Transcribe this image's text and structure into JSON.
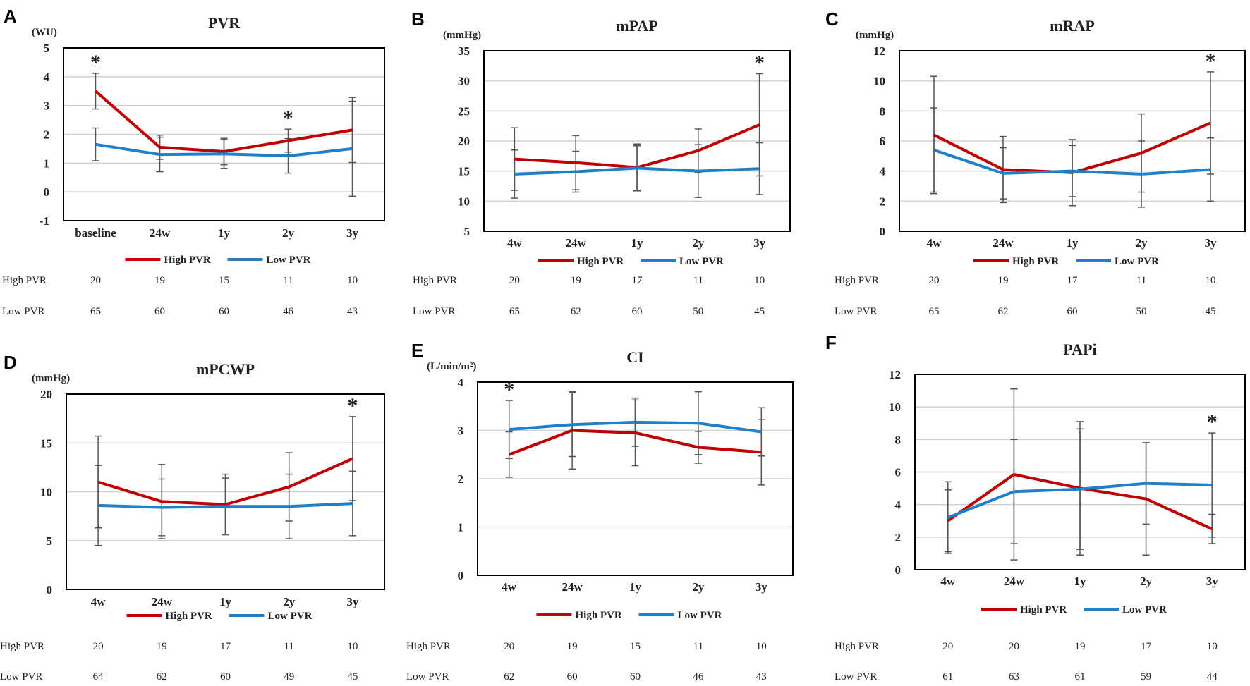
{
  "colors": {
    "high": "#c00000",
    "low": "#1f7fc8",
    "error_bar": "#555555",
    "grid": "#d0d0d0"
  },
  "legend": {
    "high": "High PVR",
    "low": "Low PVR"
  },
  "table_rows": {
    "high": "High PVR",
    "low": "Low PVR"
  },
  "chart_data": [
    {
      "panel": "A",
      "type": "line",
      "title": "PVR",
      "ylabel": "(WU)",
      "ylim": [
        -1,
        5
      ],
      "ytick_step": 1,
      "categories": [
        "baseline",
        "24w",
        "1y",
        "2y",
        "3y"
      ],
      "series": [
        {
          "name": "High PVR",
          "values": [
            3.5,
            1.55,
            1.4,
            1.78,
            2.15
          ],
          "error": [
            0.62,
            0.42,
            0.46,
            0.4,
            1.13
          ]
        },
        {
          "name": "Low PVR",
          "values": [
            1.65,
            1.3,
            1.32,
            1.25,
            1.5
          ],
          "error": [
            0.57,
            0.6,
            0.5,
            0.6,
            1.65
          ]
        }
      ],
      "significant": [
        "baseline",
        "2y"
      ],
      "n_high": [
        20,
        19,
        15,
        11,
        10
      ],
      "n_low": [
        65,
        60,
        60,
        46,
        43
      ]
    },
    {
      "panel": "B",
      "type": "line",
      "title": "mPAP",
      "ylabel": "(mmHg)",
      "ylim": [
        5,
        35
      ],
      "ytick_step": 5,
      "categories": [
        "4w",
        "24w",
        "1y",
        "2y",
        "3y"
      ],
      "series": [
        {
          "name": "High PVR",
          "values": [
            17,
            16.4,
            15.6,
            18.4,
            22.7
          ],
          "error": [
            5.2,
            4.5,
            3.9,
            3.6,
            8.5
          ]
        },
        {
          "name": "Low PVR",
          "values": [
            14.5,
            14.9,
            15.5,
            15.0,
            15.4
          ],
          "error": [
            4.0,
            3.4,
            3.7,
            4.4,
            4.3
          ]
        }
      ],
      "significant": [
        "3y"
      ],
      "n_high": [
        20,
        19,
        17,
        11,
        10
      ],
      "n_low": [
        65,
        62,
        60,
        50,
        45
      ]
    },
    {
      "panel": "C",
      "type": "line",
      "title": "mRAP",
      "ylabel": "(mmHg)",
      "ylim": [
        0,
        12
      ],
      "ytick_step": 2,
      "categories": [
        "4w",
        "24w",
        "1y",
        "2y",
        "3y"
      ],
      "series": [
        {
          "name": "High PVR",
          "values": [
            6.4,
            4.1,
            3.9,
            5.2,
            7.2
          ],
          "error": [
            3.9,
            2.2,
            2.2,
            2.6,
            3.4
          ]
        },
        {
          "name": "Low PVR",
          "values": [
            5.4,
            3.85,
            4.0,
            3.8,
            4.1
          ],
          "error": [
            2.8,
            1.7,
            1.7,
            2.2,
            2.1
          ]
        }
      ],
      "significant": [
        "3y"
      ],
      "n_high": [
        20,
        19,
        17,
        11,
        10
      ],
      "n_low": [
        65,
        62,
        60,
        50,
        45
      ]
    },
    {
      "panel": "D",
      "type": "line",
      "title": "mPCWP",
      "ylabel": "(mmHg)",
      "ylim": [
        0,
        20
      ],
      "ytick_step": 5,
      "categories": [
        "4w",
        "24w",
        "1y",
        "2y",
        "3y"
      ],
      "series": [
        {
          "name": "High PVR",
          "values": [
            11,
            9,
            8.7,
            10.5,
            13.4
          ],
          "error": [
            4.7,
            3.8,
            3.1,
            3.5,
            4.3
          ]
        },
        {
          "name": "Low PVR",
          "values": [
            8.6,
            8.4,
            8.5,
            8.5,
            8.8
          ],
          "error": [
            4.1,
            2.9,
            2.9,
            3.3,
            3.3
          ]
        }
      ],
      "significant": [
        "3y"
      ],
      "n_high": [
        20,
        19,
        17,
        11,
        10
      ],
      "n_low": [
        64,
        62,
        60,
        49,
        45
      ]
    },
    {
      "panel": "E",
      "type": "line",
      "title": "CI",
      "ylabel": "(L/min/m²)",
      "ylim": [
        0,
        4
      ],
      "ytick_step": 1,
      "categories": [
        "4w",
        "24w",
        "1y",
        "2y",
        "3y"
      ],
      "series": [
        {
          "name": "High PVR",
          "values": [
            2.5,
            3.0,
            2.95,
            2.65,
            2.55
          ],
          "error": [
            0.47,
            0.8,
            0.68,
            0.33,
            0.68
          ]
        },
        {
          "name": "Low PVR",
          "values": [
            3.02,
            3.12,
            3.17,
            3.15,
            2.97
          ],
          "error": [
            0.6,
            0.66,
            0.5,
            0.65,
            0.5
          ]
        }
      ],
      "significant": [
        "4w"
      ],
      "n_high": [
        20,
        19,
        15,
        11,
        10
      ],
      "n_low": [
        62,
        60,
        60,
        46,
        43
      ]
    },
    {
      "panel": "F",
      "type": "line",
      "title": "PAPi",
      "ylabel": "",
      "ylim": [
        0,
        12
      ],
      "ytick_step": 2,
      "categories": [
        "4w",
        "24w",
        "1y",
        "2y",
        "3y"
      ],
      "series": [
        {
          "name": "High PVR",
          "values": [
            3.0,
            5.85,
            5.0,
            4.35,
            2.5
          ],
          "error": [
            1.9,
            5.25,
            4.1,
            3.45,
            0.9
          ]
        },
        {
          "name": "Low PVR",
          "values": [
            3.2,
            4.8,
            4.95,
            5.3,
            5.2
          ],
          "error": [
            2.2,
            3.2,
            3.7,
            2.5,
            3.2
          ]
        }
      ],
      "significant": [
        "3y"
      ],
      "n_high": [
        20,
        20,
        19,
        17,
        10
      ],
      "n_low": [
        61,
        63,
        61,
        59,
        44
      ]
    }
  ]
}
